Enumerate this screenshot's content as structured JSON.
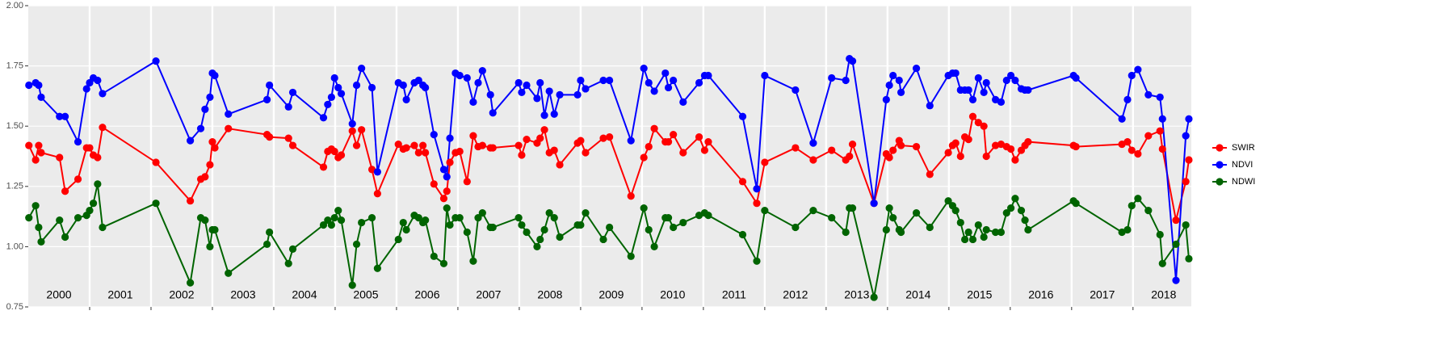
{
  "chart_data": {
    "type": "line",
    "x": [
      2000.01,
      2000.12,
      2000.17,
      2000.21,
      2000.51,
      2000.6,
      2000.81,
      2000.95,
      2001.0,
      2001.06,
      2001.13,
      2001.21,
      2002.08,
      2002.64,
      2002.81,
      2002.88,
      2002.96,
      2003.0,
      2003.04,
      2003.26,
      2003.89,
      2003.93,
      2004.24,
      2004.31,
      2004.81,
      2004.88,
      2004.94,
      2004.99,
      2005.05,
      2005.1,
      2005.28,
      2005.35,
      2005.43,
      2005.6,
      2005.69,
      2006.03,
      2006.11,
      2006.16,
      2006.29,
      2006.36,
      2006.43,
      2006.47,
      2006.61,
      2006.77,
      2006.82,
      2006.87,
      2006.96,
      2007.03,
      2007.15,
      2007.25,
      2007.33,
      2007.4,
      2007.53,
      2007.57,
      2007.99,
      2008.04,
      2008.12,
      2008.29,
      2008.34,
      2008.41,
      2008.49,
      2008.57,
      2008.66,
      2008.95,
      2009.0,
      2009.08,
      2009.37,
      2009.47,
      2009.82,
      2010.03,
      2010.11,
      2010.2,
      2010.38,
      2010.43,
      2010.51,
      2010.67,
      2010.93,
      2011.02,
      2011.08,
      2011.64,
      2011.87,
      2012.0,
      2012.5,
      2012.79,
      2013.09,
      2013.32,
      2013.38,
      2013.43,
      2013.78,
      2013.98,
      2014.03,
      2014.09,
      2014.19,
      2014.22,
      2014.47,
      2014.69,
      2014.99,
      2015.06,
      2015.11,
      2015.19,
      2015.26,
      2015.32,
      2015.39,
      2015.48,
      2015.57,
      2015.61,
      2015.76,
      2015.85,
      2015.94,
      2016.01,
      2016.08,
      2016.18,
      2016.24,
      2016.29,
      2017.03,
      2017.07,
      2017.82,
      2017.91,
      2017.98,
      2018.08,
      2018.25,
      2018.44,
      2018.48,
      2018.7,
      2018.86,
      2018.91
    ],
    "series": [
      {
        "name": "SWIR",
        "color": "#ff0000",
        "values": [
          1.42,
          1.36,
          1.42,
          1.39,
          1.37,
          1.23,
          1.28,
          1.41,
          1.41,
          1.38,
          1.37,
          1.495,
          1.35,
          1.19,
          1.28,
          1.29,
          1.34,
          1.435,
          1.41,
          1.49,
          1.465,
          1.455,
          1.45,
          1.42,
          1.33,
          1.395,
          1.405,
          1.395,
          1.37,
          1.38,
          1.48,
          1.42,
          1.485,
          1.32,
          1.22,
          1.425,
          1.405,
          1.41,
          1.42,
          1.39,
          1.42,
          1.39,
          1.26,
          1.2,
          1.23,
          1.35,
          1.39,
          1.395,
          1.27,
          1.46,
          1.415,
          1.42,
          1.41,
          1.41,
          1.42,
          1.38,
          1.445,
          1.43,
          1.45,
          1.485,
          1.39,
          1.4,
          1.34,
          1.43,
          1.44,
          1.39,
          1.45,
          1.455,
          1.21,
          1.37,
          1.415,
          1.49,
          1.435,
          1.435,
          1.465,
          1.39,
          1.455,
          1.4,
          1.435,
          1.27,
          1.18,
          1.35,
          1.41,
          1.36,
          1.4,
          1.36,
          1.375,
          1.425,
          1.18,
          1.385,
          1.37,
          1.4,
          1.44,
          1.42,
          1.415,
          1.3,
          1.39,
          1.42,
          1.43,
          1.375,
          1.455,
          1.445,
          1.54,
          1.515,
          1.5,
          1.375,
          1.42,
          1.425,
          1.415,
          1.405,
          1.36,
          1.4,
          1.42,
          1.435,
          1.42,
          1.415,
          1.425,
          1.435,
          1.4,
          1.385,
          1.46,
          1.48,
          1.405,
          1.11,
          1.27,
          1.36
        ]
      },
      {
        "name": "NDVI",
        "color": "#0000ff",
        "values": [
          1.67,
          1.68,
          1.67,
          1.62,
          1.54,
          1.54,
          1.435,
          1.655,
          1.68,
          1.7,
          1.69,
          1.635,
          1.77,
          1.44,
          1.49,
          1.57,
          1.62,
          1.72,
          1.71,
          1.55,
          1.61,
          1.67,
          1.58,
          1.64,
          1.535,
          1.59,
          1.62,
          1.7,
          1.66,
          1.635,
          1.51,
          1.67,
          1.74,
          1.66,
          1.31,
          1.68,
          1.67,
          1.61,
          1.68,
          1.69,
          1.67,
          1.66,
          1.465,
          1.32,
          1.29,
          1.45,
          1.72,
          1.71,
          1.7,
          1.6,
          1.68,
          1.73,
          1.63,
          1.555,
          1.68,
          1.64,
          1.67,
          1.615,
          1.68,
          1.545,
          1.645,
          1.55,
          1.63,
          1.63,
          1.69,
          1.655,
          1.69,
          1.69,
          1.44,
          1.74,
          1.68,
          1.645,
          1.72,
          1.66,
          1.69,
          1.6,
          1.68,
          1.71,
          1.71,
          1.54,
          1.24,
          1.71,
          1.65,
          1.43,
          1.7,
          1.69,
          1.78,
          1.77,
          1.18,
          1.61,
          1.67,
          1.71,
          1.69,
          1.64,
          1.74,
          1.585,
          1.71,
          1.72,
          1.72,
          1.65,
          1.65,
          1.65,
          1.61,
          1.7,
          1.64,
          1.68,
          1.61,
          1.6,
          1.69,
          1.71,
          1.69,
          1.655,
          1.65,
          1.65,
          1.71,
          1.7,
          1.53,
          1.61,
          1.71,
          1.735,
          1.63,
          1.62,
          1.53,
          0.86,
          1.46,
          1.53
        ]
      },
      {
        "name": "NDWI",
        "color": "#006400",
        "values": [
          1.12,
          1.17,
          1.08,
          1.02,
          1.11,
          1.04,
          1.12,
          1.13,
          1.15,
          1.18,
          1.26,
          1.08,
          1.18,
          0.85,
          1.12,
          1.11,
          1.0,
          1.07,
          1.07,
          0.89,
          1.01,
          1.06,
          0.93,
          0.99,
          1.09,
          1.11,
          1.09,
          1.12,
          1.15,
          1.11,
          0.84,
          1.01,
          1.1,
          1.12,
          0.91,
          1.03,
          1.1,
          1.07,
          1.13,
          1.12,
          1.1,
          1.11,
          0.96,
          0.93,
          1.16,
          1.09,
          1.12,
          1.12,
          1.06,
          0.94,
          1.12,
          1.14,
          1.08,
          1.08,
          1.12,
          1.09,
          1.06,
          1.0,
          1.03,
          1.07,
          1.14,
          1.12,
          1.04,
          1.09,
          1.09,
          1.14,
          1.03,
          1.08,
          0.96,
          1.16,
          1.07,
          1.0,
          1.12,
          1.12,
          1.08,
          1.1,
          1.13,
          1.14,
          1.13,
          1.05,
          0.94,
          1.15,
          1.08,
          1.15,
          1.12,
          1.06,
          1.16,
          1.16,
          0.79,
          1.07,
          1.16,
          1.12,
          1.07,
          1.06,
          1.14,
          1.08,
          1.19,
          1.17,
          1.15,
          1.1,
          1.03,
          1.06,
          1.03,
          1.09,
          1.04,
          1.07,
          1.06,
          1.06,
          1.14,
          1.16,
          1.2,
          1.15,
          1.11,
          1.07,
          1.19,
          1.18,
          1.06,
          1.07,
          1.17,
          1.2,
          1.15,
          1.05,
          0.93,
          1.01,
          1.09,
          0.95
        ]
      }
    ],
    "xlim": [
      2000,
      2018.95
    ],
    "xticks": [
      2001,
      2002,
      2003,
      2004,
      2005,
      2006,
      2007,
      2008,
      2009,
      2010,
      2011,
      2012,
      2013,
      2014,
      2015,
      2016,
      2017,
      2018
    ],
    "year_labels": [
      "2000",
      "2001",
      "2002",
      "2003",
      "2004",
      "2005",
      "2006",
      "2007",
      "2008",
      "2009",
      "2010",
      "2011",
      "2012",
      "2013",
      "2014",
      "2015",
      "2016",
      "2017",
      "2018"
    ],
    "ylim": [
      0.75,
      2.0
    ],
    "yticks": [
      0.75,
      {
        "value": 1.0,
        "label": "1.00"
      },
      1.25,
      {
        "value": 1.5,
        "label": "1.50"
      },
      1.75,
      {
        "value": 2.0,
        "label": "2.00"
      }
    ],
    "grid": true,
    "legend": "right"
  }
}
